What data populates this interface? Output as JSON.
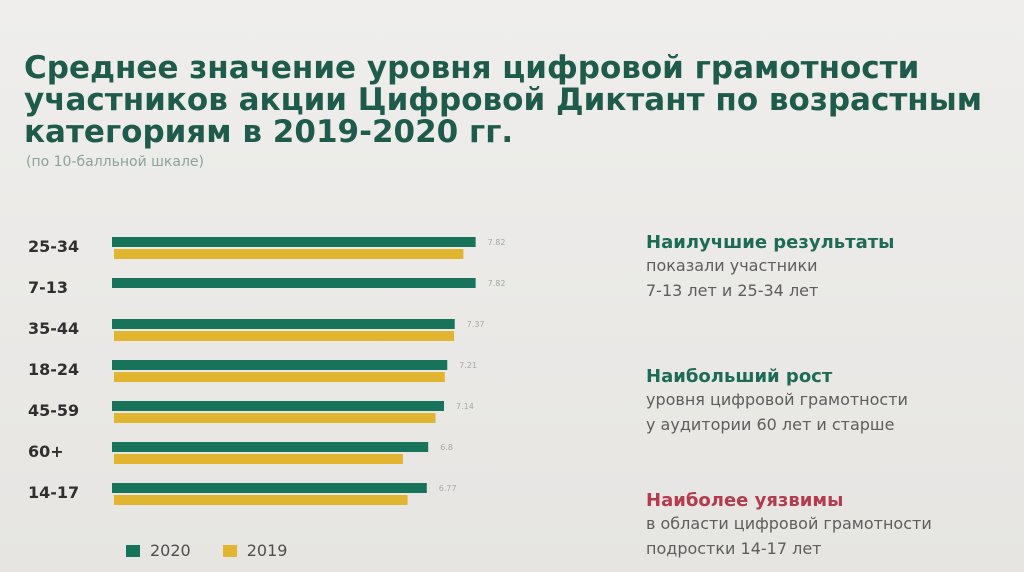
{
  "chart_data": {
    "type": "bar",
    "orientation": "horizontal",
    "title": "Среднее значение уровня цифровой грамотности участников акции Цифровой Диктант по возрастным категориям в 2019-2020 гг.",
    "subtitle": "(по 10-балльной шкале)",
    "categories": [
      "25-34",
      "7-13",
      "35-44",
      "18-24",
      "45-59",
      "60+",
      "14-17"
    ],
    "series": [
      {
        "name": "2020",
        "color": "#17735a",
        "values": [
          7.82,
          7.82,
          7.37,
          7.21,
          7.14,
          6.8,
          6.77
        ]
      },
      {
        "name": "2019",
        "color": "#e2b531",
        "values": [
          7.6,
          null,
          7.4,
          7.2,
          7.0,
          6.3,
          6.4
        ]
      }
    ],
    "data_labels": [
      "7.82",
      "7.82",
      "7.37",
      "7.21",
      "7.14",
      "6.8",
      "6.77"
    ],
    "xlim": [
      0,
      10
    ],
    "legend_position": "bottom-left"
  },
  "callouts": [
    {
      "head": "Наилучшие результаты",
      "text": [
        "показали участники",
        "7-13 лет и 25-34 лет"
      ],
      "color": "green"
    },
    {
      "head": "Наибольший рост",
      "text": [
        "уровня цифровой грамотности",
        "у аудитории 60 лет и старше"
      ],
      "color": "green"
    },
    {
      "head": "Наиболее уязвимы",
      "text": [
        "в области цифровой грамотности",
        "подростки 14-17 лет"
      ],
      "color": "red"
    }
  ],
  "colors": {
    "accent_green": "#1d6b55",
    "accent_red": "#b43a4d"
  }
}
